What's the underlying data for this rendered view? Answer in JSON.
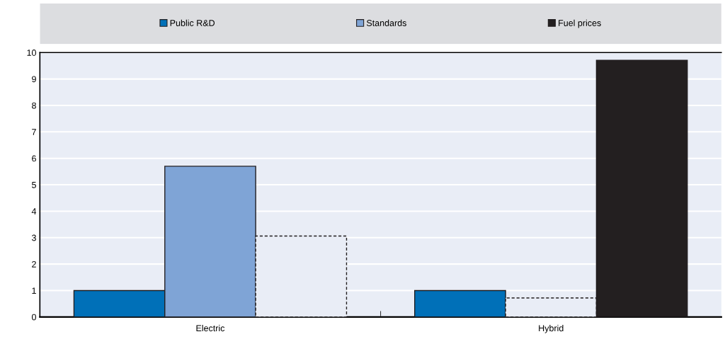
{
  "chart_data": {
    "type": "bar",
    "categories": [
      "Electric",
      "Hybrid"
    ],
    "series": [
      {
        "name": "Public R&D",
        "color": "#0070b8",
        "colors": [
          "#0070b8",
          "#0070b8"
        ],
        "values": [
          1.0,
          1.0
        ]
      },
      {
        "name": "Standards",
        "color": "#7fa4d6",
        "colors": [
          "#7fa4d6",
          "#e9edf6"
        ],
        "values": [
          5.7,
          0.72
        ]
      },
      {
        "name": "Fuel prices",
        "color": "#231f20",
        "colors": [
          "#e9edf6",
          "#231f20"
        ],
        "values": [
          3.06,
          9.71
        ]
      }
    ],
    "ylim": [
      0,
      10
    ],
    "yticks": [
      0,
      1,
      2,
      3,
      4,
      5,
      6,
      7,
      8,
      9,
      10
    ],
    "grid": "y",
    "legend": "top"
  }
}
